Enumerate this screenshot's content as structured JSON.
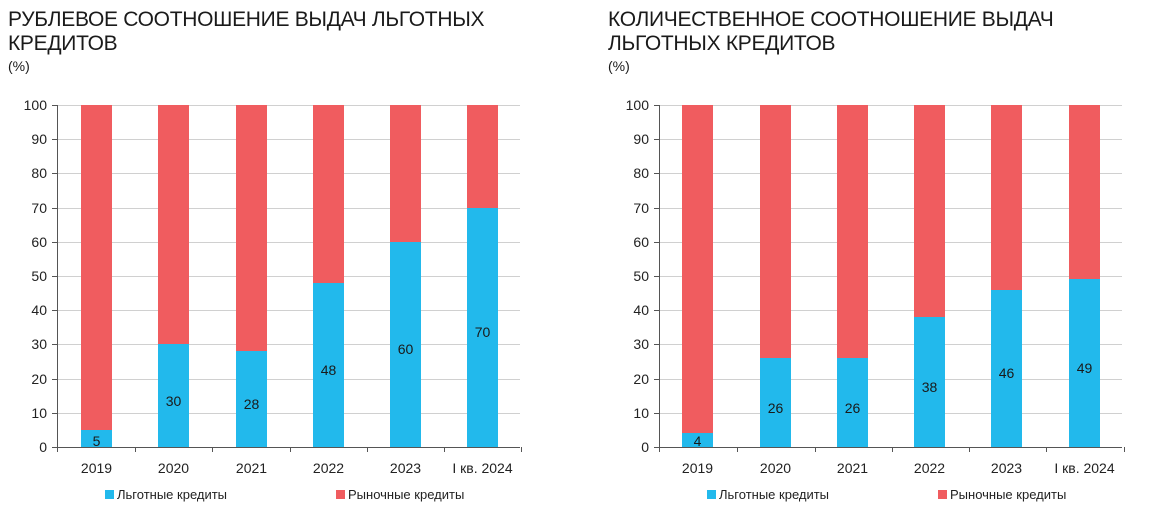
{
  "chart_data": [
    {
      "type": "bar",
      "stacked": true,
      "title": "РУБЛЕВОЕ СООТНОШЕНИЕ ВЫДАЧ ЛЬГОТНЫХ\nКРЕДИТОВ",
      "unit": "(%)",
      "xlabel": "",
      "ylabel": "%",
      "ylim": [
        0,
        100
      ],
      "yticks": [
        0,
        10,
        20,
        30,
        40,
        50,
        60,
        70,
        80,
        90,
        100
      ],
      "grid": true,
      "legend_position": "bottom",
      "categories": [
        "2019",
        "2020",
        "2021",
        "2022",
        "2023",
        "I кв. 2024"
      ],
      "series": [
        {
          "name": "Льготные кредиты",
          "color": "#22b9ec",
          "values": [
            5,
            30,
            28,
            48,
            60,
            70
          ]
        },
        {
          "name": "Рыночные кредиты",
          "color": "#f05c5f",
          "values": [
            95,
            70,
            72,
            52,
            40,
            30
          ]
        }
      ],
      "data_labels": [
        "5",
        "30",
        "28",
        "48",
        "60",
        "70"
      ]
    },
    {
      "type": "bar",
      "stacked": true,
      "title": "КОЛИЧЕСТВЕННОЕ СООТНОШЕНИЕ ВЫДАЧ\nЛЬГОТНЫХ КРЕДИТОВ",
      "unit": "(%)",
      "xlabel": "",
      "ylabel": "%",
      "ylim": [
        0,
        100
      ],
      "yticks": [
        0,
        10,
        20,
        30,
        40,
        50,
        60,
        70,
        80,
        90,
        100
      ],
      "grid": true,
      "legend_position": "bottom",
      "categories": [
        "2019",
        "2020",
        "2021",
        "2022",
        "2023",
        "I кв. 2024"
      ],
      "series": [
        {
          "name": "Льготные кредиты",
          "color": "#22b9ec",
          "values": [
            4,
            26,
            26,
            38,
            46,
            49
          ]
        },
        {
          "name": "Рыночные кредиты",
          "color": "#f05c5f",
          "values": [
            96,
            74,
            74,
            62,
            54,
            51
          ]
        }
      ],
      "data_labels": [
        "4",
        "26",
        "26",
        "38",
        "46",
        "49"
      ]
    }
  ]
}
